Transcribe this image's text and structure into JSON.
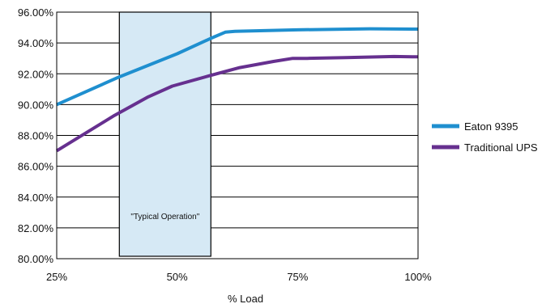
{
  "chart_data": {
    "type": "line",
    "title": "",
    "xlabel": "% Load",
    "ylabel": "",
    "x_ticks": [
      "25%",
      "50%",
      "75%",
      "100%"
    ],
    "xlim": [
      25,
      100
    ],
    "y_ticks": [
      "80.00%",
      "82.00%",
      "84.00%",
      "86.00%",
      "88.00%",
      "90.00%",
      "92.00%",
      "94.00%",
      "96.00%"
    ],
    "ylim": [
      80,
      96
    ],
    "grid": "horizontal",
    "legend_position": "right",
    "shaded_region": {
      "x_start": 38,
      "x_end": 57,
      "label": "\"Typical Operation\"",
      "color": "#d6e9f5"
    },
    "series": [
      {
        "name": "Eaton 9395",
        "color": "#1f8fcf",
        "points": [
          [
            25,
            90.0
          ],
          [
            38,
            91.8
          ],
          [
            50,
            93.3
          ],
          [
            57,
            94.3
          ],
          [
            60,
            94.7
          ],
          [
            62,
            94.75
          ],
          [
            75,
            94.85
          ],
          [
            90,
            94.92
          ],
          [
            100,
            94.9
          ]
        ]
      },
      {
        "name": "Traditional UPS",
        "color": "#66308f",
        "points": [
          [
            25,
            87.0
          ],
          [
            37,
            89.3
          ],
          [
            44,
            90.5
          ],
          [
            49,
            91.2
          ],
          [
            57,
            91.9
          ],
          [
            63,
            92.4
          ],
          [
            70,
            92.8
          ],
          [
            74,
            93.0
          ],
          [
            77,
            93.0
          ],
          [
            85,
            93.05
          ],
          [
            95,
            93.12
          ],
          [
            100,
            93.1
          ]
        ]
      }
    ]
  }
}
